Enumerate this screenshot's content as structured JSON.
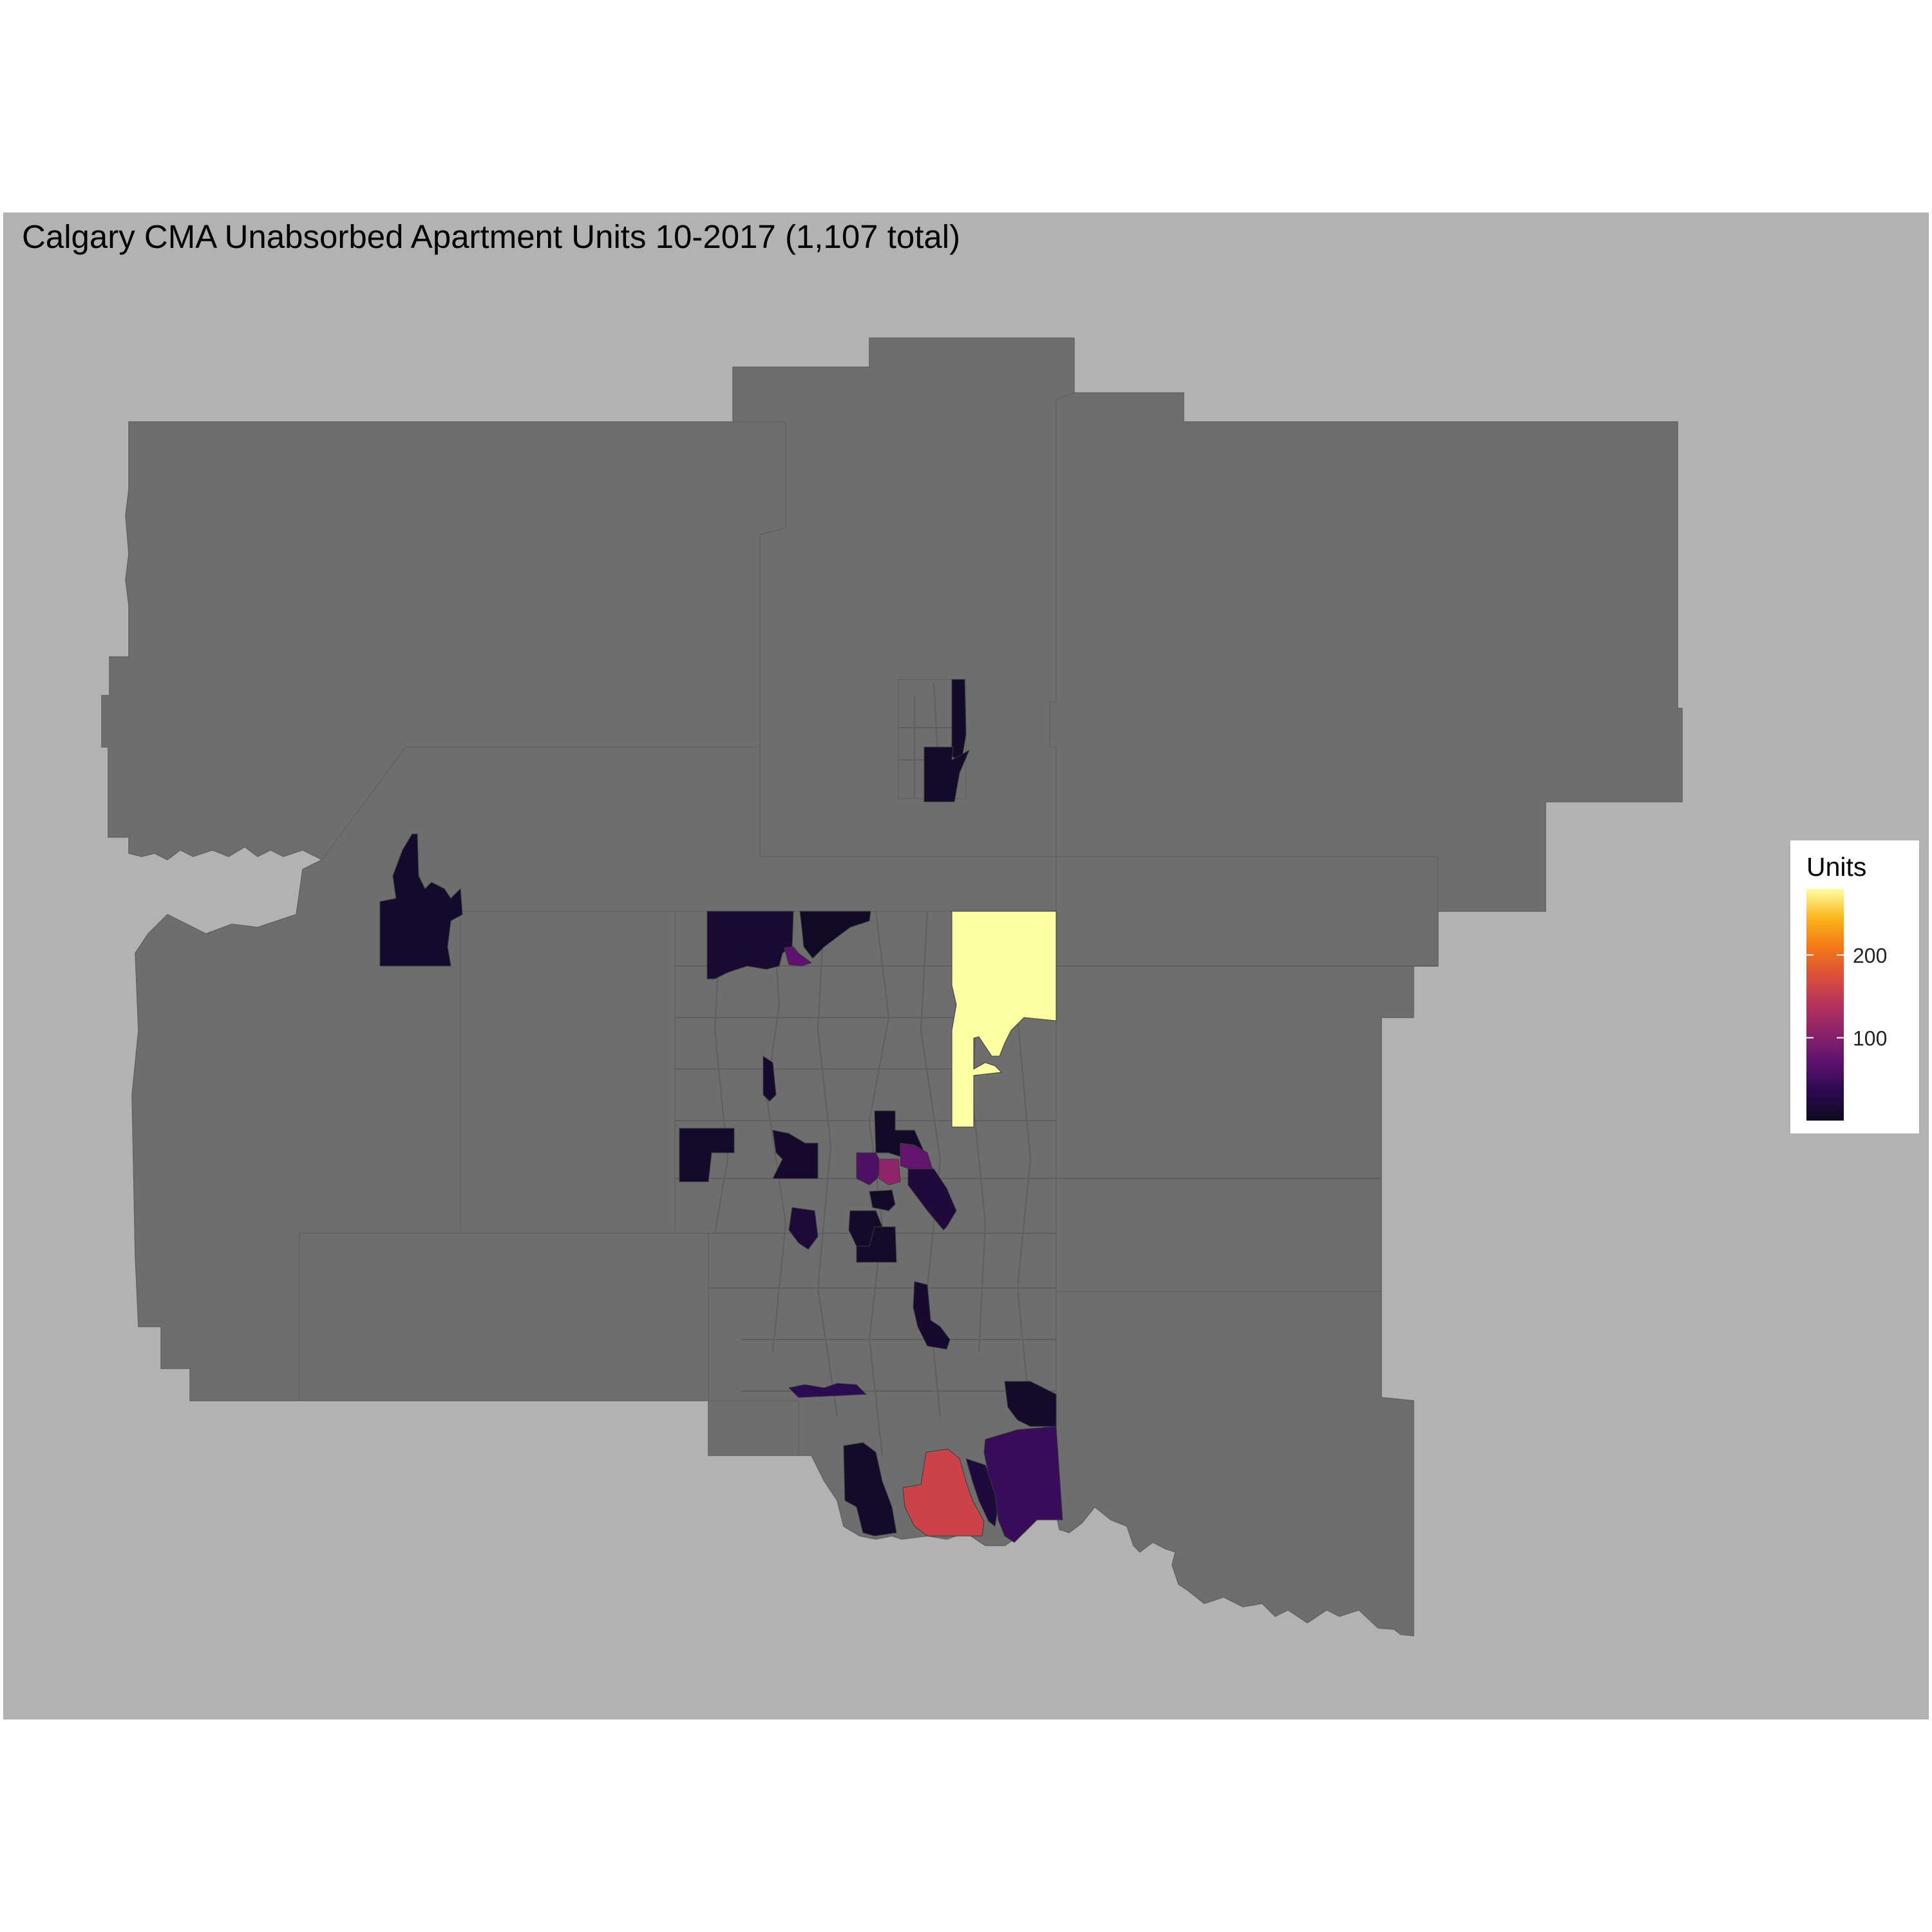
{
  "map": {
    "title": "Calgary CMA Unabsorbed Apartment Units 10-2017 (1,107 total)",
    "colors": {
      "page_background": "#ffffff",
      "panel_background": "#b2b2b2",
      "no_data_region": "#6e6e6e",
      "region_border": "#5f5f5f"
    },
    "color_scale": {
      "name": "inferno",
      "min": 0,
      "max": 280,
      "stops": [
        "#0d0a1e",
        "#2a0a50",
        "#5c126e",
        "#8a226a",
        "#b5325b",
        "#dc5039",
        "#f37819",
        "#fbb61a",
        "#fcffa4"
      ]
    },
    "legend": {
      "title": "Units",
      "ticks": [
        {
          "value": 100,
          "label": "100"
        },
        {
          "value": 200,
          "label": "200"
        }
      ],
      "placement": "right"
    },
    "filled_tracts": [
      {
        "id": "north-strip",
        "units": 6
      },
      {
        "id": "north-block",
        "units": 8
      },
      {
        "id": "west-cluster",
        "units": 9
      },
      {
        "id": "north-central-a",
        "units": 14
      },
      {
        "id": "north-central-b",
        "units": 70
      },
      {
        "id": "north-central-c",
        "units": 5
      },
      {
        "id": "northeast-large",
        "units": 280
      },
      {
        "id": "central-sliver",
        "units": 12
      },
      {
        "id": "central-left",
        "units": 8
      },
      {
        "id": "central-mid",
        "units": 10
      },
      {
        "id": "downtown-a",
        "units": 6
      },
      {
        "id": "downtown-b",
        "units": 60
      },
      {
        "id": "downtown-c",
        "units": 110
      },
      {
        "id": "downtown-d",
        "units": 75
      },
      {
        "id": "downtown-e",
        "units": 20
      },
      {
        "id": "south-central-a",
        "units": 18
      },
      {
        "id": "south-central-b",
        "units": 8
      },
      {
        "id": "south-central-c",
        "units": 6
      },
      {
        "id": "south-mid",
        "units": 8
      },
      {
        "id": "south-band",
        "units": 35
      },
      {
        "id": "southeast-small",
        "units": 12
      },
      {
        "id": "southeast-small-b",
        "units": 8
      },
      {
        "id": "far-south-west",
        "units": 8
      },
      {
        "id": "far-south-red",
        "units": 160
      },
      {
        "id": "far-south-dark",
        "units": 22
      },
      {
        "id": "far-south-purple",
        "units": 45
      }
    ]
  }
}
